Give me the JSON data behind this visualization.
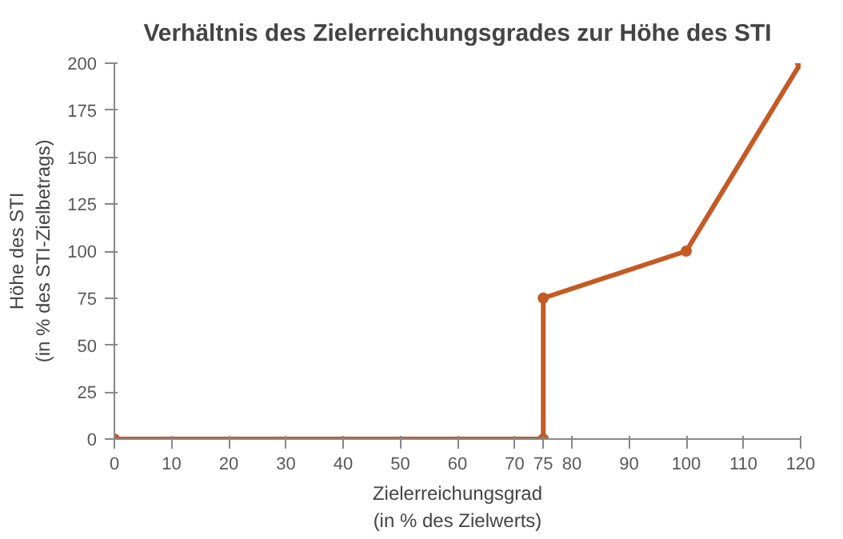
{
  "chart_data": {
    "type": "line",
    "title": "Verhältnis des Zielerreichungsgrades zur Höhe des STI",
    "xlabel": "Zielerreichungsgrad\n(in % des Zielwerts)",
    "ylabel": "Höhe des STI\n(in % des STI-Zielbetrags)",
    "series": [
      {
        "color": "#c55a24",
        "x": [
          0,
          75,
          75,
          100,
          120
        ],
        "values": [
          0,
          0,
          75,
          100,
          200
        ]
      }
    ],
    "xlim": [
      0,
      120
    ],
    "xticks": [
      0,
      10,
      20,
      30,
      40,
      50,
      60,
      70,
      75,
      80,
      90,
      100,
      110,
      120
    ],
    "ylim": [
      0,
      200
    ],
    "yticks": [
      0,
      25,
      50,
      75,
      100,
      125,
      150,
      175,
      200
    ],
    "grid": false,
    "marker": "circle",
    "line_style": "solid"
  }
}
